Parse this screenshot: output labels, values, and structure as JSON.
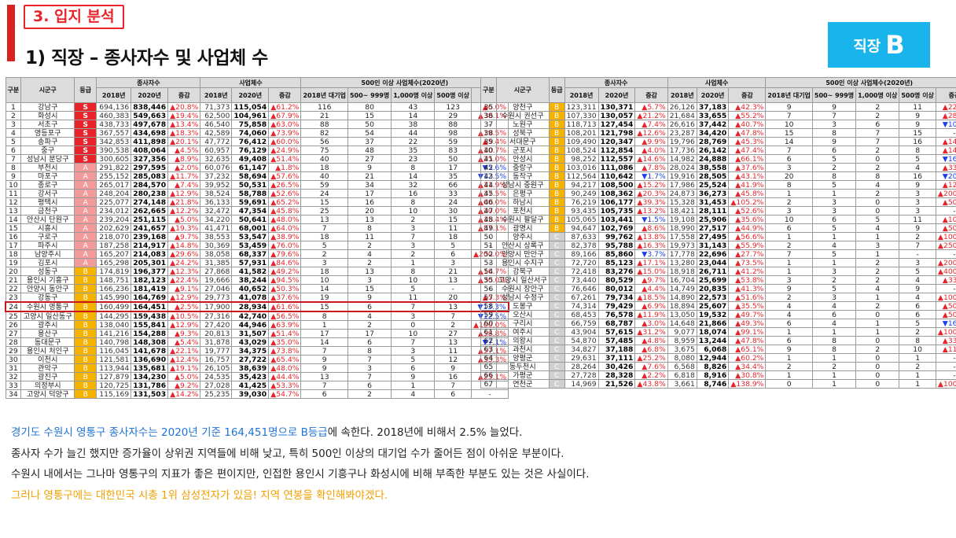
{
  "header": {
    "section_tag": "3. 입지 분석",
    "title": "1) 직장 – 종사자수 및 사업체 수",
    "grade_label": "직장",
    "grade_letter": "B"
  },
  "table_headers": {
    "gu": "구분",
    "sigungu": "시군구",
    "grade": "등급",
    "workers": "종사자수",
    "biz": "사업체수",
    "large": "500인 이상 사업체수(2020년)",
    "y2018": "2018년",
    "y2020": "2020년",
    "change": "증감",
    "c2018big": "2018년 대기업",
    "c500": "500~ 999명",
    "c1000": "1,000명 이상",
    "c500up": "500명 이상"
  },
  "left_rows": [
    [
      "1",
      "강남구",
      "S",
      "694,136",
      "838,446",
      "▲20.8%",
      "71,373",
      "115,054",
      "▲61.2%",
      "116",
      "80",
      "43",
      "123",
      "▲6.0%"
    ],
    [
      "2",
      "화성시",
      "S",
      "460,383",
      "549,663",
      "▲19.4%",
      "62,500",
      "104,961",
      "▲67.9%",
      "21",
      "15",
      "14",
      "29",
      "▲38.1%"
    ],
    [
      "3",
      "서초구",
      "S",
      "438,733",
      "497,678",
      "▲13.4%",
      "46,540",
      "75,858",
      "▲63.0%",
      "88",
      "50",
      "38",
      "88",
      "-"
    ],
    [
      "4",
      "영등포구",
      "S",
      "367,557",
      "434,698",
      "▲18.3%",
      "42,589",
      "74,060",
      "▲73.9%",
      "82",
      "54",
      "44",
      "98",
      "▲19.5%"
    ],
    [
      "5",
      "송파구",
      "S",
      "342,853",
      "411,898",
      "▲20.1%",
      "47,772",
      "76,412",
      "▲60.0%",
      "56",
      "37",
      "22",
      "59",
      "▲5.4%"
    ],
    [
      "6",
      "중구",
      "S",
      "390,538",
      "408,064",
      "▲4.5%",
      "60,957",
      "76,129",
      "▲24.9%",
      "75",
      "48",
      "35",
      "83",
      "▲10.7%"
    ],
    [
      "7",
      "성남시 분당구",
      "S",
      "300,605",
      "327,356",
      "▲8.9%",
      "32,635",
      "49,408",
      "▲51.4%",
      "40",
      "27",
      "23",
      "50",
      "▲25.0%"
    ],
    [
      "8",
      "부천시",
      "A",
      "291,822",
      "297,595",
      "▲2.0%",
      "60,076",
      "61,147",
      "▲1.8%",
      "18",
      "9",
      "8",
      "17",
      "▼5.6%"
    ],
    [
      "9",
      "마포구",
      "A",
      "255,152",
      "285,083",
      "▲11.7%",
      "37,232",
      "58,694",
      "▲57.6%",
      "40",
      "21",
      "14",
      "35",
      "▼12.5%"
    ],
    [
      "10",
      "종로구",
      "A",
      "265,017",
      "284,570",
      "▲7.4%",
      "39,952",
      "50,531",
      "▲26.5%",
      "59",
      "34",
      "32",
      "66",
      "▲11.9%"
    ],
    [
      "11",
      "강서구",
      "A",
      "248,204",
      "280,238",
      "▲12.9%",
      "38,524",
      "58,788",
      "▲52.6%",
      "24",
      "17",
      "16",
      "33",
      "▲37.5%"
    ],
    [
      "12",
      "평택시",
      "A",
      "225,077",
      "274,148",
      "▲21.8%",
      "36,133",
      "59,691",
      "▲65.2%",
      "15",
      "16",
      "8",
      "24",
      "▲60.0%"
    ],
    [
      "13",
      "금천구",
      "A",
      "234,012",
      "262,665",
      "▲12.2%",
      "32,472",
      "47,354",
      "▲45.8%",
      "25",
      "20",
      "10",
      "30",
      "▲20.0%"
    ],
    [
      "14",
      "안산시 단원구",
      "A",
      "239,204",
      "251,115",
      "▲5.0%",
      "34,220",
      "50,641",
      "▲48.0%",
      "13",
      "13",
      "2",
      "15",
      "▲15.4%"
    ],
    [
      "15",
      "시흥시",
      "A",
      "202,629",
      "241,657",
      "▲19.3%",
      "41,471",
      "68,001",
      "▲64.0%",
      "7",
      "8",
      "3",
      "11",
      "▲57.1%"
    ],
    [
      "16",
      "구로구",
      "A",
      "218,070",
      "239,168",
      "▲9.7%",
      "38,553",
      "53,547",
      "▲38.9%",
      "18",
      "11",
      "7",
      "18",
      "-"
    ],
    [
      "17",
      "파주시",
      "A",
      "187,258",
      "214,917",
      "▲14.8%",
      "30,369",
      "53,459",
      "▲76.0%",
      "5",
      "2",
      "3",
      "5",
      "-"
    ],
    [
      "18",
      "남양주시",
      "A",
      "165,207",
      "214,083",
      "▲29.6%",
      "38,058",
      "68,337",
      "▲79.6%",
      "2",
      "4",
      "2",
      "6",
      "▲200.0%"
    ],
    [
      "19",
      "김포시",
      "A",
      "165,298",
      "205,301",
      "▲24.2%",
      "31,385",
      "57,931",
      "▲84.6%",
      "3",
      "2",
      "1",
      "3",
      "-"
    ],
    [
      "20",
      "성동구",
      "B",
      "174,819",
      "196,377",
      "▲12.3%",
      "27,868",
      "41,582",
      "▲49.2%",
      "18",
      "13",
      "8",
      "21",
      "▲16.7%"
    ],
    [
      "21",
      "용인시 기흥구",
      "B",
      "148,751",
      "182,123",
      "▲22.4%",
      "19,666",
      "38,244",
      "▲94.5%",
      "10",
      "3",
      "10",
      "13",
      "▲30.0%"
    ],
    [
      "22",
      "안양시 동안구",
      "B",
      "166,236",
      "181,419",
      "▲9.1%",
      "27,046",
      "40,652",
      "▲50.3%",
      "14",
      "15",
      "5",
      "-",
      "-"
    ],
    [
      "23",
      "강동구",
      "B",
      "145,990",
      "164,769",
      "▲12.9%",
      "29,773",
      "41,078",
      "▲37.6%",
      "19",
      "9",
      "11",
      "20",
      "▲5.3%"
    ],
    [
      "24",
      "수원시 영통구",
      "B",
      "160,499",
      "164,451",
      "▲2.5%",
      "17,900",
      "28,934",
      "▲61.6%",
      "15",
      "6",
      "7",
      "13",
      "▼13.3%"
    ],
    [
      "25",
      "고양시 일산동구",
      "B",
      "144,295",
      "159,438",
      "▲10.5%",
      "27,316",
      "42,740",
      "▲56.5%",
      "8",
      "4",
      "3",
      "7",
      "▼12.5%"
    ],
    [
      "26",
      "광주시",
      "B",
      "138,040",
      "155,841",
      "▲12.9%",
      "27,420",
      "44,946",
      "▲63.9%",
      "1",
      "2",
      "0",
      "2",
      "▲100.0%"
    ],
    [
      "27",
      "용산구",
      "B",
      "141,216",
      "154,288",
      "▲9.3%",
      "20,813",
      "31,507",
      "▲51.4%",
      "17",
      "17",
      "10",
      "27",
      "▲58.8%"
    ],
    [
      "28",
      "동대문구",
      "B",
      "140,798",
      "148,308",
      "▲5.4%",
      "31,878",
      "43,029",
      "▲35.0%",
      "14",
      "6",
      "7",
      "13",
      "▼7.1%"
    ],
    [
      "29",
      "용인시 처인구",
      "B",
      "116,045",
      "141,678",
      "▲22.1%",
      "19,777",
      "34,375",
      "▲73.8%",
      "7",
      "8",
      "3",
      "11",
      "▲57.1%"
    ],
    [
      "30",
      "이천시",
      "B",
      "121,581",
      "136,690",
      "▲12.4%",
      "16,757",
      "27,722",
      "▲65.4%",
      "9",
      "7",
      "5",
      "12",
      "▲33.3%"
    ],
    [
      "31",
      "관악구",
      "B",
      "113,944",
      "135,681",
      "▲19.1%",
      "26,105",
      "38,639",
      "▲48.0%",
      "9",
      "3",
      "6",
      "9",
      "-"
    ],
    [
      "32",
      "광진구",
      "B",
      "127,879",
      "134,230",
      "▲5.0%",
      "24,535",
      "35,423",
      "▲44.4%",
      "13",
      "7",
      "9",
      "16",
      "▲23.1%"
    ],
    [
      "33",
      "의정부시",
      "B",
      "120,725",
      "131,786",
      "▲9.2%",
      "27,028",
      "41,425",
      "▲53.3%",
      "7",
      "6",
      "1",
      "7",
      "-"
    ],
    [
      "34",
      "고양시 덕양구",
      "B",
      "115,169",
      "131,503",
      "▲14.2%",
      "25,235",
      "39,030",
      "▲54.7%",
      "6",
      "2",
      "4",
      "6",
      "-"
    ]
  ],
  "right_rows": [
    [
      "35",
      "양천구",
      "B",
      "123,311",
      "130,371",
      "▲5.7%",
      "26,126",
      "37,183",
      "▲42.3%",
      "9",
      "9",
      "2",
      "11",
      "▲22.2%"
    ],
    [
      "36",
      "수원시 권선구",
      "B",
      "107,330",
      "130,057",
      "▲21.2%",
      "21,684",
      "33,655",
      "▲55.2%",
      "7",
      "7",
      "2",
      "9",
      "▲28.6%"
    ],
    [
      "37",
      "노원구",
      "B",
      "118,713",
      "127,454",
      "▲7.4%",
      "26,616",
      "37,442",
      "▲40.7%",
      "10",
      "3",
      "6",
      "9",
      "▼10.0%"
    ],
    [
      "38",
      "성북구",
      "B",
      "108,201",
      "121,798",
      "▲12.6%",
      "23,287",
      "34,420",
      "▲47.8%",
      "15",
      "8",
      "7",
      "15",
      "-"
    ],
    [
      "39",
      "서대문구",
      "B",
      "109,490",
      "120,347",
      "▲9.9%",
      "19,796",
      "28,769",
      "▲45.3%",
      "14",
      "9",
      "7",
      "16",
      "▲14.3%"
    ],
    [
      "40",
      "군포시",
      "B",
      "108,524",
      "112,854",
      "▲4.0%",
      "17,736",
      "26,142",
      "▲47.4%",
      "7",
      "6",
      "2",
      "8",
      "▲14.3%"
    ],
    [
      "41",
      "안성시",
      "B",
      "98,252",
      "112,557",
      "▲14.6%",
      "14,982",
      "24,888",
      "▲66.1%",
      "6",
      "5",
      "0",
      "5",
      "▼16.7%"
    ],
    [
      "42",
      "중랑구",
      "B",
      "103,016",
      "111,086",
      "▲7.8%",
      "28,024",
      "38,558",
      "▲37.6%",
      "3",
      "2",
      "2",
      "4",
      "▲33.3%"
    ],
    [
      "43",
      "동작구",
      "B",
      "112,564",
      "110,642",
      "▼1.7%",
      "19,916",
      "28,505",
      "▲43.1%",
      "20",
      "8",
      "8",
      "16",
      "▼20.0%"
    ],
    [
      "44",
      "성남시 중원구",
      "B",
      "94,217",
      "108,500",
      "▲15.2%",
      "17,986",
      "25,524",
      "▲41.9%",
      "8",
      "5",
      "4",
      "9",
      "▲12.5%"
    ],
    [
      "45",
      "은평구",
      "B",
      "90,249",
      "108,362",
      "▲20.3%",
      "24,873",
      "36,273",
      "▲45.8%",
      "1",
      "1",
      "2",
      "3",
      "▲200.0%"
    ],
    [
      "46",
      "하남시",
      "B",
      "76,219",
      "106,177",
      "▲39.3%",
      "15,328",
      "31,453",
      "▲105.2%",
      "2",
      "3",
      "0",
      "3",
      "▲50.0%"
    ],
    [
      "47",
      "포천시",
      "B",
      "93,435",
      "105,735",
      "▲13.2%",
      "18,421",
      "28,111",
      "▲52.6%",
      "3",
      "3",
      "0",
      "3",
      "-"
    ],
    [
      "48",
      "수원시 팔달구",
      "B",
      "105,065",
      "103,441",
      "▼1.5%",
      "19,108",
      "25,906",
      "▲35.6%",
      "10",
      "6",
      "5",
      "11",
      "▲10.0%"
    ],
    [
      "49",
      "광명시",
      "B",
      "94,647",
      "102,769",
      "▲8.6%",
      "18,990",
      "27,517",
      "▲44.9%",
      "6",
      "5",
      "4",
      "9",
      "▲50.0%"
    ],
    [
      "50",
      "양주시",
      "C",
      "87,633",
      "99,762",
      "▲13.8%",
      "17,558",
      "27,495",
      "▲56.6%",
      "1",
      "1",
      "1",
      "2",
      "▲100.0%"
    ],
    [
      "51",
      "안산시 상록구",
      "C",
      "82,378",
      "95,788",
      "▲16.3%",
      "19,973",
      "31,143",
      "▲55.9%",
      "2",
      "4",
      "3",
      "7",
      "▲250.0%"
    ],
    [
      "52",
      "안양시 만안구",
      "C",
      "89,166",
      "85,860",
      "▼3.7%",
      "17,778",
      "22,696",
      "▲27.7%",
      "7",
      "5",
      "1",
      "-",
      "-"
    ],
    [
      "53",
      "용인시 수지구",
      "C",
      "72,720",
      "85,123",
      "▲17.1%",
      "13,280",
      "23,044",
      "▲73.5%",
      "1",
      "1",
      "2",
      "3",
      "▲200.0%"
    ],
    [
      "54",
      "강북구",
      "C",
      "72,418",
      "83,276",
      "▲15.0%",
      "18,918",
      "26,711",
      "▲41.2%",
      "1",
      "3",
      "2",
      "5",
      "▲400.0%"
    ],
    [
      "55",
      "고양시 일산서구",
      "C",
      "73,440",
      "80,529",
      "▲9.7%",
      "16,704",
      "25,699",
      "▲53.8%",
      "3",
      "2",
      "2",
      "4",
      "▲33.3%"
    ],
    [
      "56",
      "수원시 장안구",
      "C",
      "76,646",
      "80,012",
      "▲4.4%",
      "14,749",
      "20,835",
      "▲41.3%",
      "9",
      "5",
      "4",
      "9",
      "-"
    ],
    [
      "57",
      "성남시 수정구",
      "C",
      "67,261",
      "79,734",
      "▲18.5%",
      "14,890",
      "22,573",
      "▲51.6%",
      "2",
      "3",
      "1",
      "4",
      "▲100.0%"
    ],
    [
      "58",
      "도봉구",
      "C",
      "74,314",
      "79,429",
      "▲6.9%",
      "18,894",
      "25,607",
      "▲35.5%",
      "4",
      "4",
      "2",
      "6",
      "▲50.0%"
    ],
    [
      "59",
      "오산시",
      "C",
      "68,453",
      "76,578",
      "▲11.9%",
      "13,050",
      "19,532",
      "▲49.7%",
      "4",
      "6",
      "0",
      "6",
      "▲50.0%"
    ],
    [
      "60",
      "구리시",
      "C",
      "66,759",
      "68,787",
      "▲3.0%",
      "14,648",
      "21,866",
      "▲49.3%",
      "6",
      "4",
      "1",
      "5",
      "▼16.7%"
    ],
    [
      "61",
      "여주시",
      "C",
      "43,904",
      "57,615",
      "▲31.2%",
      "9,077",
      "18,074",
      "▲99.1%",
      "1",
      "1",
      "1",
      "2",
      "▲100.0%"
    ],
    [
      "62",
      "의왕시",
      "C",
      "54,870",
      "57,485",
      "▲4.8%",
      "8,959",
      "13,244",
      "▲47.8%",
      "6",
      "8",
      "0",
      "8",
      "▲33.3%"
    ],
    [
      "63",
      "과천시",
      "C",
      "34,827",
      "37,188",
      "▲6.8%",
      "3,675",
      "6,068",
      "▲65.1%",
      "9",
      "8",
      "2",
      "10",
      "▲11.1%"
    ],
    [
      "64",
      "양평군",
      "C",
      "29,631",
      "37,111",
      "▲25.2%",
      "8,080",
      "12,944",
      "▲60.2%",
      "1",
      "1",
      "0",
      "1",
      "-"
    ],
    [
      "65",
      "동두천시",
      "C",
      "28,264",
      "30,426",
      "▲7.6%",
      "6,568",
      "8,826",
      "▲34.4%",
      "2",
      "2",
      "0",
      "2",
      "-"
    ],
    [
      "66",
      "가평군",
      "C",
      "27,728",
      "28,328",
      "▲2.2%",
      "6,818",
      "8,916",
      "▲30.8%",
      "1",
      "1",
      "0",
      "1",
      "-"
    ],
    [
      "67",
      "연천군",
      "C",
      "14,969",
      "21,526",
      "▲43.8%",
      "3,661",
      "8,746",
      "▲138.9%",
      "0",
      "1",
      "0",
      "1",
      "▲100.0%"
    ]
  ],
  "notes": {
    "line1_highlight": "경기도 수원시 영통구 종사자수는 2020년 기준 164,451명으로 B등급",
    "line1_rest": "에 속한다. 2018년에 비해서 2.5% 늘었다.",
    "line2": "종사자 수가 늘긴 했지만 증가율이 상위권 지역들에 비해 낮고, 특히 500인 이상의 대기업 수가 줄어든 점이 아쉬운 부분이다.",
    "line3": "수원시 내에서는 그나마 영통구의 지표가 좋은 편이지만, 인접한 용인시 기흥구나 화성시에 비해 부족한 부분도 있는 것은 사실이다.",
    "line4": "그러나 영통구에는 대한민국 시총 1위 삼성전자가 있음! 지역 연봉을 확인해봐야겠다."
  },
  "colors": {
    "grade_S": "#e8232a",
    "grade_A": "#f39a9a",
    "grade_B": "#f5b300",
    "grade_C": "#d0d0d0",
    "up": "#e8232a",
    "down": "#1a3ee8",
    "highlight": "#c8181e",
    "badge": "#19b4ec"
  },
  "highlight_row": "24"
}
